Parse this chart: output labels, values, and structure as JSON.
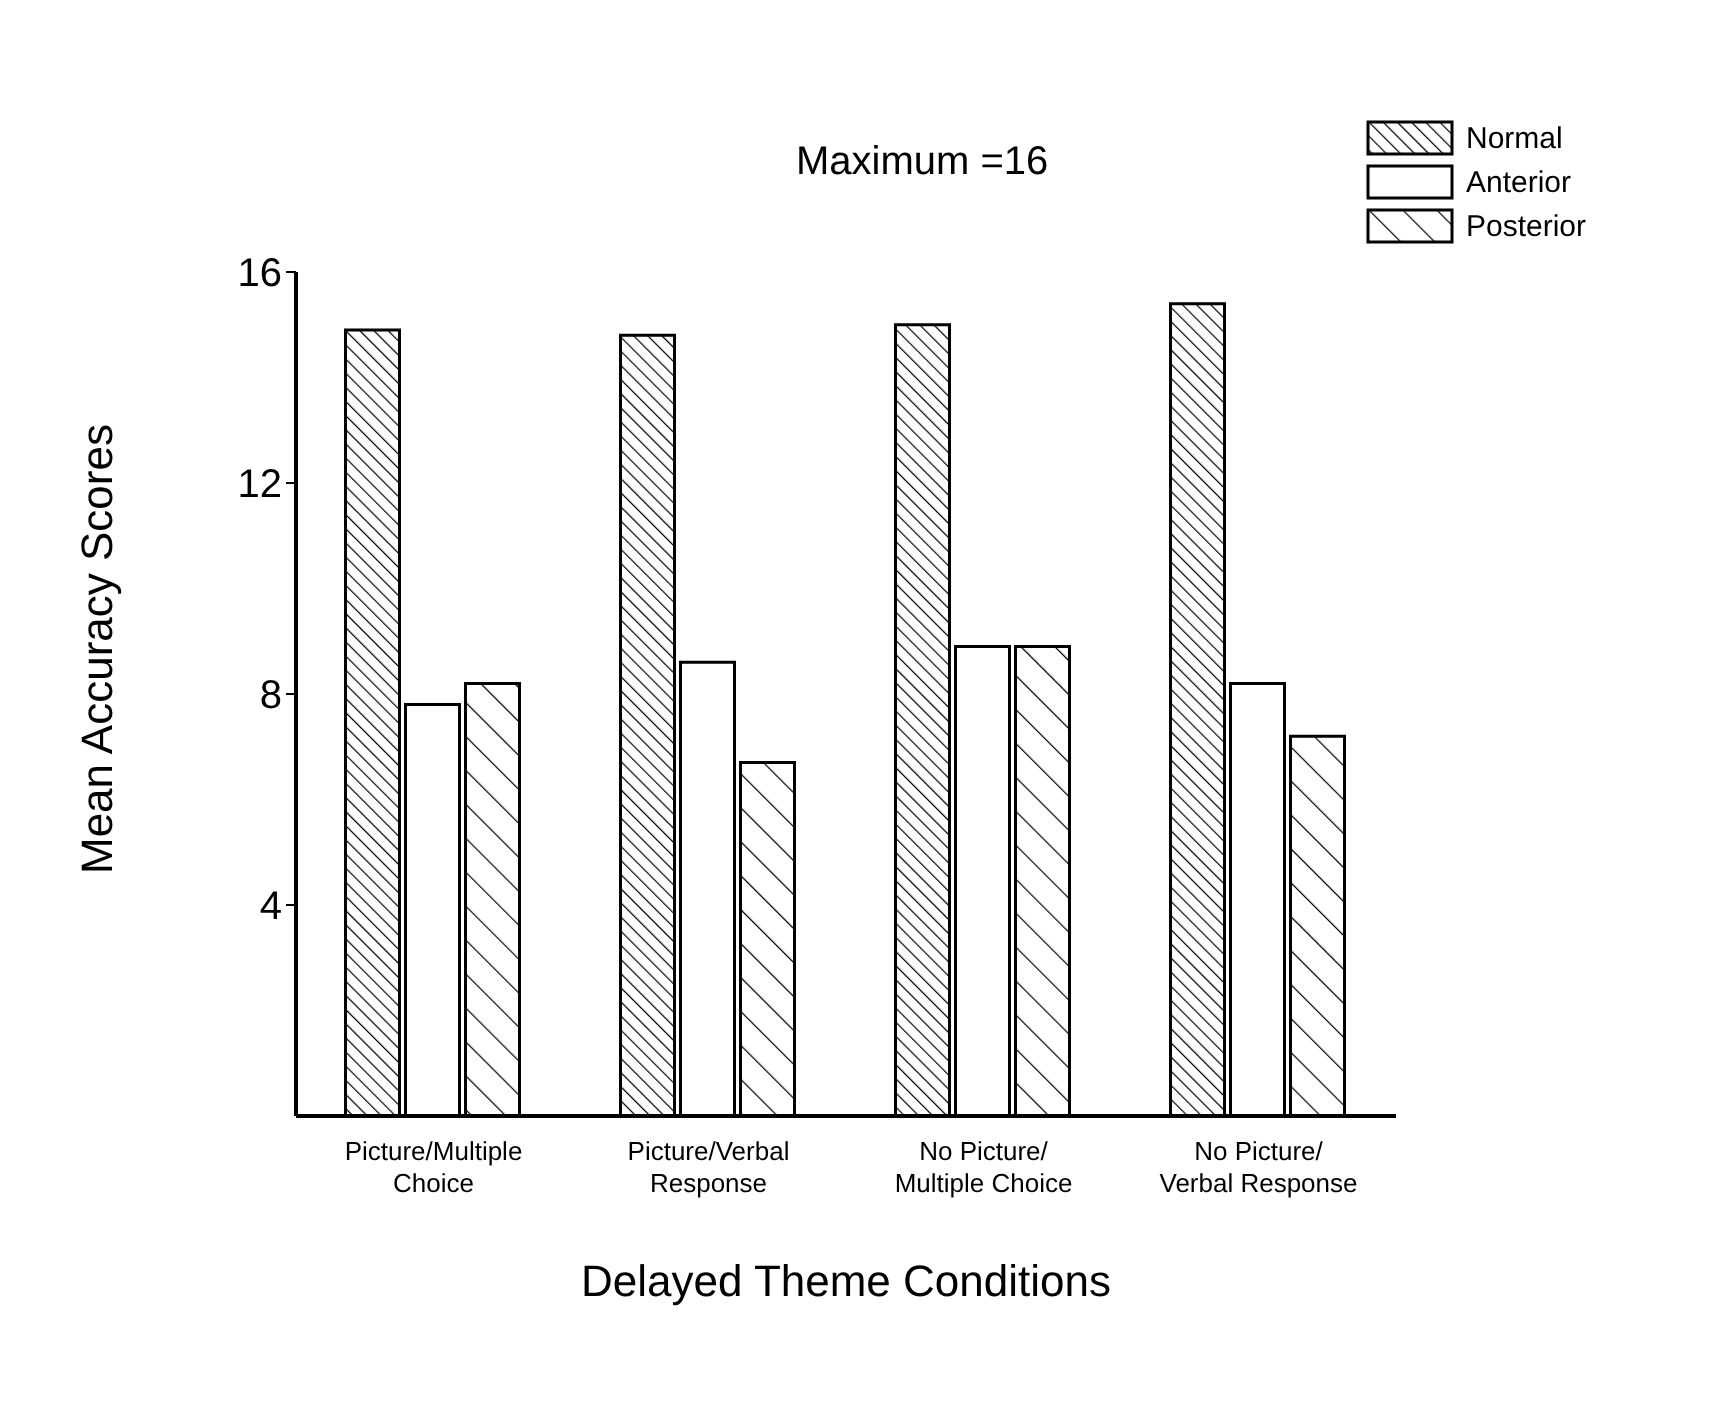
{
  "chart_data": {
    "type": "bar",
    "xlabel": "Delayed Theme Conditions",
    "ylabel": "Mean Accuracy Scores",
    "annotations": [
      "Maximum =16"
    ],
    "categories": [
      "Picture/Multiple\nChoice",
      "Picture/Verbal\nResponse",
      "No Picture/\nMultiple Choice",
      "No Picture/\nVerbal Response"
    ],
    "series": [
      {
        "name": "Normal",
        "color": "#000000",
        "values": [
          14.9,
          14.8,
          15.0,
          15.4
        ]
      },
      {
        "name": "Anterior",
        "color": "#000000",
        "values": [
          7.8,
          8.6,
          8.9,
          8.2
        ]
      },
      {
        "name": "Posterior",
        "color": "#000000",
        "values": [
          8.2,
          6.7,
          8.9,
          7.2
        ]
      }
    ],
    "ylim": [
      0,
      16
    ],
    "yticks": [
      4,
      8,
      12,
      16
    ],
    "grid": false,
    "legend": "top right"
  }
}
